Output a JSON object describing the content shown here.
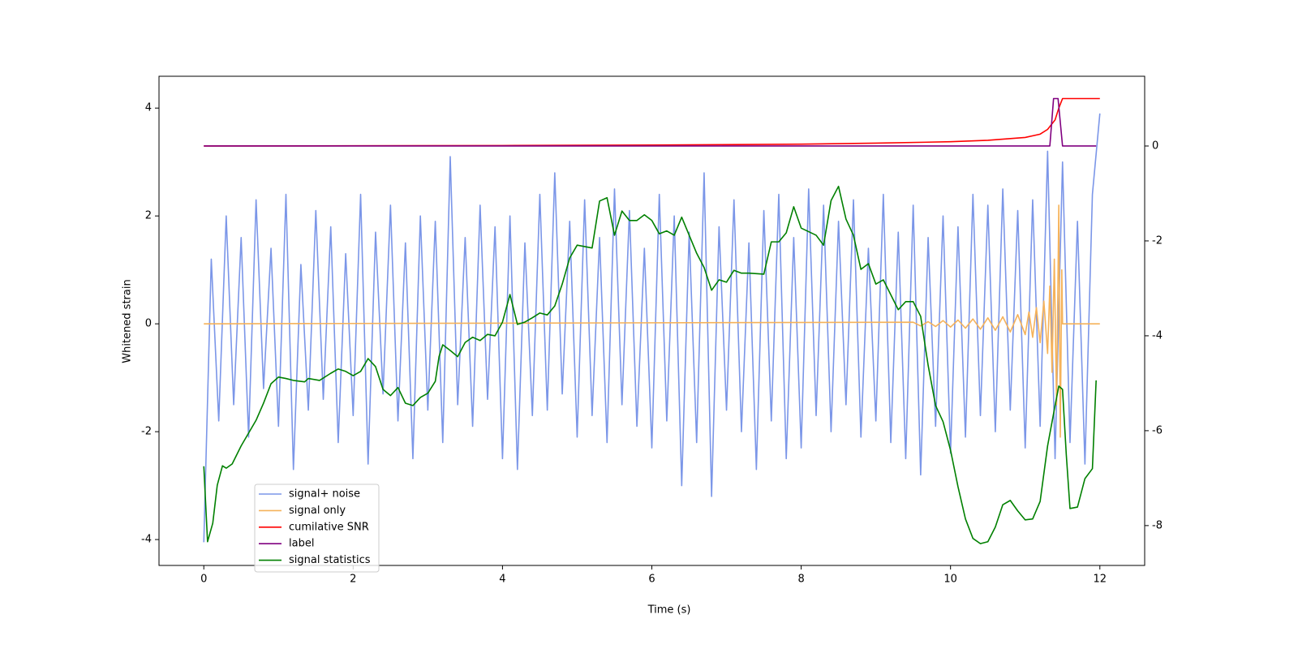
{
  "chart_data": {
    "type": "line",
    "xlabel": "Time (s)",
    "ylabel": "Whitened strain",
    "xlim": [
      -0.6,
      12.6
    ],
    "xticks": [
      0,
      2,
      4,
      6,
      8,
      10,
      12
    ],
    "ylim": [
      -4.48,
      4.59
    ],
    "yticks": [
      -4,
      -2,
      0,
      2,
      4
    ],
    "y2lim": [
      -8.84,
      1.47
    ],
    "y2ticks": [
      -8,
      -6,
      -4,
      -2,
      0
    ],
    "legend": "lower left",
    "series": [
      {
        "name": "signal+ noise",
        "color": "#7b96e8",
        "x": [
          0,
          0.1,
          0.2,
          0.3,
          0.4,
          0.5,
          0.6,
          0.7,
          0.8,
          0.9,
          1,
          1.1,
          1.2,
          1.3,
          1.4,
          1.5,
          1.6,
          1.7,
          1.8,
          1.9,
          2,
          2.1,
          2.2,
          2.3,
          2.4,
          2.5,
          2.6,
          2.7,
          2.8,
          2.9,
          3,
          3.1,
          3.2,
          3.3,
          3.4,
          3.5,
          3.6,
          3.7,
          3.8,
          3.9,
          4,
          4.1,
          4.2,
          4.3,
          4.4,
          4.5,
          4.6,
          4.7,
          4.8,
          4.9,
          5,
          5.1,
          5.2,
          5.3,
          5.4,
          5.5,
          5.6,
          5.7,
          5.8,
          5.9,
          6,
          6.1,
          6.2,
          6.3,
          6.4,
          6.5,
          6.6,
          6.7,
          6.8,
          6.9,
          7,
          7.1,
          7.2,
          7.3,
          7.4,
          7.5,
          7.6,
          7.7,
          7.8,
          7.9,
          8,
          8.1,
          8.2,
          8.3,
          8.4,
          8.5,
          8.6,
          8.7,
          8.8,
          8.9,
          9,
          9.1,
          9.2,
          9.3,
          9.4,
          9.5,
          9.6,
          9.7,
          9.8,
          9.9,
          10,
          10.1,
          10.2,
          10.3,
          10.4,
          10.5,
          10.6,
          10.7,
          10.8,
          10.9,
          11,
          11.1,
          11.2,
          11.3,
          11.4,
          11.5,
          11.6,
          11.7,
          11.8,
          11.9,
          12
        ],
        "values": [
          -4.05,
          1.2,
          -1.8,
          2.0,
          -1.5,
          1.6,
          -2.1,
          2.3,
          -1.2,
          1.4,
          -1.9,
          2.4,
          -2.7,
          1.1,
          -1.6,
          2.1,
          -1.4,
          1.8,
          -2.2,
          1.3,
          -1.7,
          2.4,
          -2.6,
          1.7,
          -1.3,
          2.2,
          -1.8,
          1.5,
          -2.5,
          2.0,
          -1.6,
          1.9,
          -2.2,
          3.1,
          -1.5,
          1.6,
          -1.9,
          2.2,
          -1.4,
          1.8,
          -2.5,
          2.0,
          -2.7,
          1.5,
          -1.7,
          2.4,
          -1.6,
          2.8,
          -1.3,
          1.9,
          -2.1,
          2.3,
          -1.7,
          1.6,
          -2.2,
          2.5,
          -1.5,
          2.1,
          -1.9,
          1.4,
          -2.3,
          2.4,
          -1.8,
          2.0,
          -3.0,
          1.7,
          -2.2,
          2.8,
          -3.2,
          1.8,
          -1.6,
          2.3,
          -2.0,
          1.5,
          -2.7,
          2.1,
          -1.8,
          2.4,
          -2.5,
          1.6,
          -2.3,
          2.5,
          -1.7,
          2.2,
          -2.0,
          1.9,
          -1.5,
          2.3,
          -2.1,
          1.4,
          -1.8,
          2.4,
          -2.2,
          1.7,
          -2.5,
          2.2,
          -2.8,
          1.6,
          -1.9,
          2.0,
          -2.4,
          1.8,
          -2.1,
          2.4,
          -1.7,
          2.2,
          -2.0,
          2.5,
          -1.6,
          2.1,
          -2.3,
          2.3,
          -1.9,
          3.2,
          -2.5,
          3.0,
          -2.2,
          1.9,
          -2.6,
          2.4,
          3.9
        ]
      },
      {
        "name": "signal only",
        "color": "#f5b25a",
        "x": [
          0,
          9.5,
          9.6,
          9.7,
          9.8,
          9.9,
          10,
          10.1,
          10.2,
          10.3,
          10.4,
          10.5,
          10.6,
          10.7,
          10.8,
          10.9,
          11,
          11.05,
          11.1,
          11.15,
          11.2,
          11.25,
          11.3,
          11.33,
          11.36,
          11.39,
          11.42,
          11.45,
          11.47,
          11.49,
          11.5,
          12
        ],
        "values": [
          0,
          0.03,
          -0.04,
          0.04,
          -0.05,
          0.06,
          -0.06,
          0.07,
          -0.08,
          0.09,
          -0.1,
          0.11,
          -0.12,
          0.13,
          -0.15,
          0.17,
          -0.2,
          0.22,
          -0.25,
          0.3,
          -0.35,
          0.42,
          -0.55,
          0.7,
          -0.9,
          1.2,
          -1.5,
          2.2,
          -2.1,
          1.0,
          0,
          0
        ]
      },
      {
        "name": "cumilative SNR",
        "color": "#ff0000",
        "axis": "y2",
        "x": [
          0,
          2,
          4,
          6,
          8,
          9,
          10,
          10.5,
          11,
          11.2,
          11.3,
          11.4,
          11.45,
          11.5,
          12
        ],
        "values": [
          0,
          0.005,
          0.01,
          0.02,
          0.04,
          0.06,
          0.09,
          0.12,
          0.18,
          0.25,
          0.35,
          0.55,
          0.8,
          1,
          1
        ]
      },
      {
        "name": "label",
        "color": "#800080",
        "axis": "y2",
        "x": [
          0,
          11.33,
          11.38,
          11.44,
          11.5,
          11.95
        ],
        "values": [
          0,
          0,
          1,
          1,
          0,
          0
        ]
      },
      {
        "name": "signal statistics",
        "color": "#008000",
        "axis": "y2",
        "x": [
          0,
          0.05,
          0.12,
          0.18,
          0.25,
          0.3,
          0.38,
          0.5,
          0.7,
          0.8,
          0.9,
          1,
          1.1,
          1.2,
          1.35,
          1.4,
          1.55,
          1.7,
          1.8,
          1.9,
          2,
          2.1,
          2.2,
          2.3,
          2.4,
          2.5,
          2.6,
          2.7,
          2.8,
          2.9,
          3,
          3.1,
          3.15,
          3.2,
          3.3,
          3.4,
          3.5,
          3.6,
          3.7,
          3.8,
          3.9,
          4,
          4.1,
          4.2,
          4.3,
          4.4,
          4.5,
          4.6,
          4.7,
          4.8,
          4.9,
          5,
          5.1,
          5.2,
          5.3,
          5.4,
          5.5,
          5.6,
          5.7,
          5.8,
          5.9,
          6,
          6.1,
          6.2,
          6.3,
          6.4,
          6.5,
          6.6,
          6.7,
          6.8,
          6.9,
          7,
          7.1,
          7.2,
          7.3,
          7.5,
          7.6,
          7.7,
          7.8,
          7.9,
          8,
          8.2,
          8.3,
          8.4,
          8.5,
          8.6,
          8.7,
          8.8,
          8.9,
          9,
          9.1,
          9.3,
          9.4,
          9.5,
          9.6,
          9.7,
          9.8,
          9.9,
          10,
          10.1,
          10.2,
          10.3,
          10.4,
          10.5,
          10.6,
          10.7,
          10.8,
          10.9,
          11,
          11.1,
          11.2,
          11.3,
          11.4,
          11.45,
          11.5,
          11.55,
          11.6,
          11.7,
          11.8,
          11.9,
          11.95
        ],
        "values": [
          -6.75,
          -8.34,
          -7.95,
          -7.15,
          -6.74,
          -6.79,
          -6.7,
          -6.32,
          -5.78,
          -5.42,
          -5.01,
          -4.87,
          -4.9,
          -4.94,
          -4.97,
          -4.9,
          -4.94,
          -4.79,
          -4.7,
          -4.75,
          -4.84,
          -4.75,
          -4.48,
          -4.65,
          -5.13,
          -5.26,
          -5.09,
          -5.42,
          -5.47,
          -5.3,
          -5.21,
          -4.96,
          -4.44,
          -4.19,
          -4.31,
          -4.44,
          -4.14,
          -4.03,
          -4.1,
          -3.97,
          -4.0,
          -3.71,
          -3.13,
          -3.76,
          -3.71,
          -3.62,
          -3.52,
          -3.56,
          -3.37,
          -2.91,
          -2.36,
          -2.09,
          -2.12,
          -2.15,
          -1.16,
          -1.09,
          -1.88,
          -1.37,
          -1.57,
          -1.57,
          -1.45,
          -1.57,
          -1.85,
          -1.79,
          -1.88,
          -1.5,
          -1.88,
          -2.26,
          -2.56,
          -3.04,
          -2.82,
          -2.87,
          -2.62,
          -2.68,
          -2.68,
          -2.7,
          -2.02,
          -2.02,
          -1.83,
          -1.28,
          -1.73,
          -1.88,
          -2.09,
          -1.15,
          -0.85,
          -1.54,
          -1.88,
          -2.6,
          -2.48,
          -2.91,
          -2.82,
          -3.45,
          -3.28,
          -3.28,
          -3.59,
          -4.62,
          -5.47,
          -5.81,
          -6.41,
          -7.18,
          -7.86,
          -8.27,
          -8.38,
          -8.34,
          -8.03,
          -7.56,
          -7.47,
          -7.69,
          -7.88,
          -7.86,
          -7.49,
          -6.32,
          -5.47,
          -5.06,
          -5.13,
          -6.5,
          -7.64,
          -7.61,
          -7.01,
          -6.8,
          -4.94
        ]
      }
    ]
  }
}
